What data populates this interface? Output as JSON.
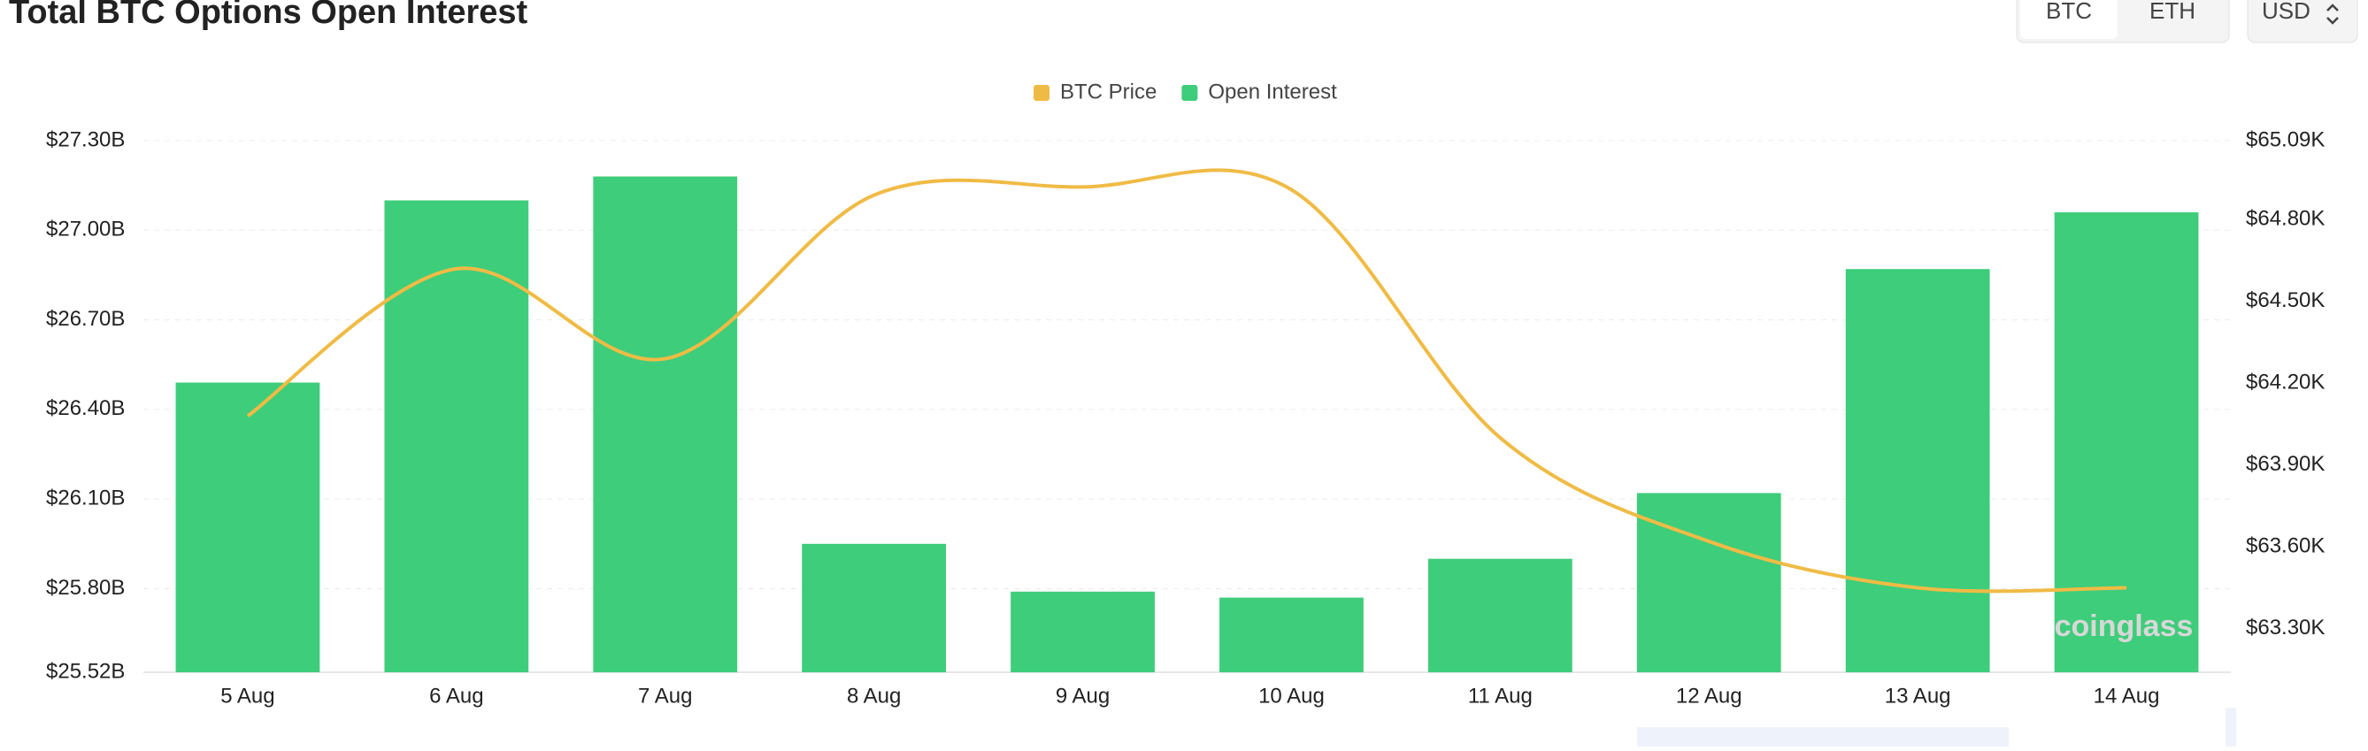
{
  "header": {
    "title": "Total BTC Options Open Interest",
    "tabs": [
      "BTC",
      "ETH"
    ],
    "currency": "USD"
  },
  "watermark": "coinglass",
  "chart_data": {
    "type": "bar-line",
    "categories": [
      "5 Aug",
      "6 Aug",
      "7 Aug",
      "8 Aug",
      "9 Aug",
      "10 Aug",
      "11 Aug",
      "12 Aug",
      "13 Aug",
      "14 Aug"
    ],
    "series": [
      {
        "name": "BTC Price",
        "color": "#f0bb45",
        "type": "line",
        "axis": "y2",
        "values": [
          64.08,
          64.62,
          64.29,
          64.89,
          64.92,
          64.91,
          64.0,
          63.62,
          63.45,
          63.45
        ]
      },
      {
        "name": "Open Interest",
        "color": "#3ecd7a",
        "type": "bar",
        "values": [
          26.49,
          27.1,
          27.18,
          25.95,
          25.79,
          25.77,
          25.9,
          26.12,
          26.87,
          27.06
        ]
      }
    ],
    "ylim": [
      25.52,
      27.3
    ],
    "yticks": [
      {
        "value": 25.52,
        "label": "$25.52B"
      },
      {
        "value": 25.8,
        "label": "$25.80B"
      },
      {
        "value": 26.1,
        "label": "$26.10B"
      },
      {
        "value": 26.4,
        "label": "$26.40B"
      },
      {
        "value": 26.7,
        "label": "$26.70B"
      },
      {
        "value": 27.0,
        "label": "$27.00B"
      },
      {
        "value": 27.3,
        "label": "$27.30B"
      }
    ],
    "y2lim": [
      63.14,
      65.09
    ],
    "y2ticks": [
      {
        "value": 63.3,
        "label": "$63.30K"
      },
      {
        "value": 63.6,
        "label": "$63.60K"
      },
      {
        "value": 63.9,
        "label": "$63.90K"
      },
      {
        "value": 64.2,
        "label": "$64.20K"
      },
      {
        "value": 64.5,
        "label": "$64.50K"
      },
      {
        "value": 64.8,
        "label": "$64.80K"
      },
      {
        "value": 65.09,
        "label": "$65.09K"
      }
    ],
    "grid": true,
    "legend": "top"
  }
}
